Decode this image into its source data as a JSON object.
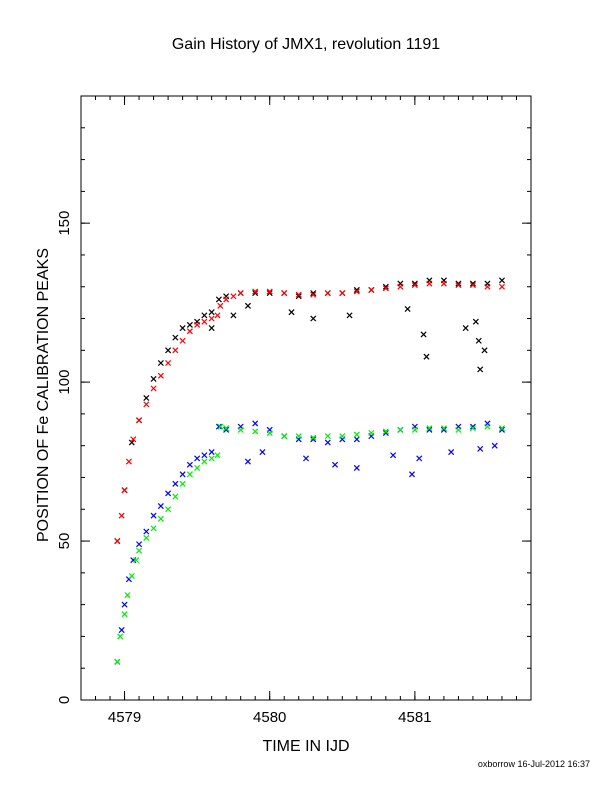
{
  "chart_data": {
    "type": "scatter",
    "title": "Gain History of JMX1, revolution 1191",
    "xlabel": "TIME IN IJD",
    "ylabel": "POSITION OF Fe CALIBRATION PEAKS",
    "xlim": [
      4578.7,
      4581.8
    ],
    "ylim": [
      0,
      190
    ],
    "x_ticks": [
      4579,
      4580,
      4581
    ],
    "y_ticks": [
      0,
      50,
      100,
      150
    ],
    "grid": false,
    "series": [
      {
        "color": "#000000",
        "marker": "x",
        "x": [
          4578.95,
          4579.0,
          4579.05,
          4579.1,
          4579.15,
          4579.2,
          4579.25,
          4579.3,
          4579.35,
          4579.4,
          4579.45,
          4579.5,
          4579.55,
          4579.6,
          4579.65,
          4579.7,
          4579.8,
          4579.9,
          4580.0,
          4580.1,
          4580.2,
          4580.3,
          4580.4,
          4580.5,
          4580.6,
          4580.7,
          4580.8,
          4580.9,
          4581.0,
          4581.1,
          4581.2,
          4581.3,
          4581.4,
          4581.5,
          4581.6,
          4579.6,
          4579.75,
          4579.85,
          4580.15,
          4580.3,
          4580.55,
          4580.95,
          4581.06,
          4581.08,
          4581.35,
          4581.42,
          4581.44,
          4581.45,
          4581.48
        ],
        "y": [
          50,
          66,
          81,
          88,
          95,
          101,
          106,
          110,
          114,
          117,
          118,
          119,
          121,
          122,
          126,
          127,
          128,
          128,
          128,
          128,
          127,
          128,
          128,
          128,
          129,
          129,
          130,
          131,
          131,
          132,
          132,
          131,
          131,
          131,
          132,
          117,
          121,
          124,
          122,
          120,
          121,
          123,
          115,
          108,
          117,
          119,
          113,
          104,
          110
        ]
      },
      {
        "color": "#ff0000",
        "marker": "x",
        "x": [
          4578.95,
          4578.98,
          4579.0,
          4579.03,
          4579.06,
          4579.1,
          4579.15,
          4579.2,
          4579.25,
          4579.3,
          4579.35,
          4579.4,
          4579.45,
          4579.5,
          4579.55,
          4579.6,
          4579.64,
          4579.66,
          4579.7,
          4579.75,
          4579.8,
          4579.9,
          4580.0,
          4580.1,
          4580.2,
          4580.3,
          4580.4,
          4580.5,
          4580.6,
          4580.7,
          4580.8,
          4580.9,
          4581.0,
          4581.1,
          4581.2,
          4581.3,
          4581.4,
          4581.5,
          4581.6
        ],
        "y": [
          50,
          58,
          66,
          75,
          82,
          88,
          93,
          98,
          102,
          106,
          110,
          113,
          116,
          118,
          119,
          120,
          121,
          124,
          126,
          127,
          128,
          128.5,
          128.5,
          128,
          127.5,
          127.5,
          128,
          128,
          128.5,
          129,
          129.5,
          130,
          130.5,
          131,
          131,
          130.5,
          130.5,
          130,
          130
        ]
      },
      {
        "color": "#0000ff",
        "marker": "x",
        "x": [
          4578.95,
          4578.98,
          4579.0,
          4579.03,
          4579.06,
          4579.1,
          4579.15,
          4579.2,
          4579.25,
          4579.3,
          4579.35,
          4579.4,
          4579.45,
          4579.5,
          4579.55,
          4579.6,
          4579.65,
          4579.7,
          4579.8,
          4579.9,
          4580.0,
          4580.1,
          4580.2,
          4580.3,
          4580.4,
          4580.5,
          4580.6,
          4580.7,
          4580.8,
          4580.9,
          4581.0,
          4581.1,
          4581.2,
          4581.3,
          4581.4,
          4581.5,
          4581.6,
          4579.85,
          4579.95,
          4580.25,
          4580.45,
          4580.6,
          4580.85,
          4580.98,
          4581.03,
          4581.25,
          4581.45,
          4581.55
        ],
        "y": [
          12,
          22,
          30,
          38,
          44,
          49,
          53,
          58,
          61,
          65,
          68,
          71,
          74,
          76,
          77,
          78,
          86,
          85,
          86,
          87,
          85,
          83,
          82,
          82,
          81,
          82,
          82,
          83,
          84,
          85,
          86,
          85,
          85,
          86,
          86,
          87,
          85,
          75,
          78,
          76,
          74,
          73,
          77,
          71,
          76,
          78,
          79,
          80
        ]
      },
      {
        "color": "#00ee00",
        "marker": "x",
        "x": [
          4578.95,
          4578.97,
          4579.0,
          4579.02,
          4579.05,
          4579.08,
          4579.1,
          4579.15,
          4579.2,
          4579.25,
          4579.3,
          4579.35,
          4579.4,
          4579.45,
          4579.5,
          4579.55,
          4579.6,
          4579.64,
          4579.66,
          4579.7,
          4579.8,
          4579.9,
          4580.0,
          4580.1,
          4580.2,
          4580.3,
          4580.4,
          4580.5,
          4580.6,
          4580.7,
          4580.8,
          4580.9,
          4581.0,
          4581.1,
          4581.2,
          4581.3,
          4581.4,
          4581.5,
          4581.6
        ],
        "y": [
          12,
          20,
          27,
          33,
          39,
          44,
          47,
          51,
          54,
          57,
          60,
          64,
          68,
          71,
          73,
          75,
          76,
          77,
          86,
          85.5,
          85,
          84.5,
          84,
          83,
          83,
          82.5,
          83,
          83,
          83.5,
          84,
          84.5,
          85,
          85,
          85.5,
          85.5,
          85,
          85.5,
          86,
          85.5
        ]
      }
    ]
  },
  "footer": "oxborrow 16-Jul-2012 16:37"
}
